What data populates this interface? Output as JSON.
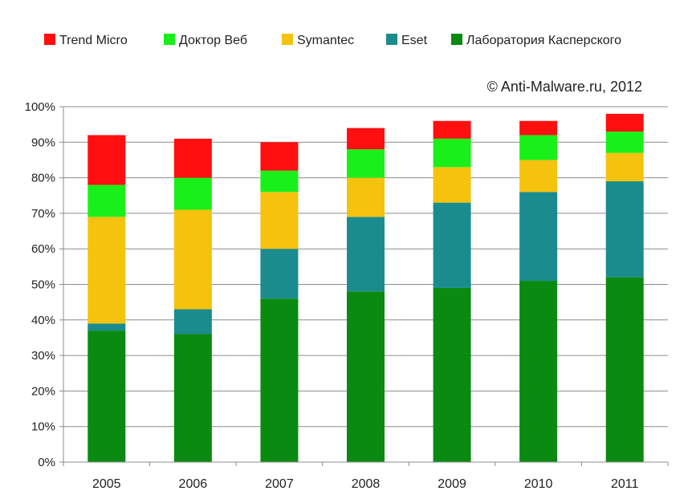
{
  "chart_data": {
    "type": "bar",
    "stacked": true,
    "categories": [
      "2005",
      "2006",
      "2007",
      "2008",
      "2009",
      "2010",
      "2011"
    ],
    "series": [
      {
        "name": "Лаборатория Касперского",
        "color": "#0a8a10",
        "values": [
          37,
          36,
          46,
          48,
          49,
          51,
          52
        ]
      },
      {
        "name": "Eset",
        "color": "#1a8c8e",
        "values": [
          2,
          7,
          14,
          21,
          24,
          25,
          27
        ]
      },
      {
        "name": "Symantec",
        "color": "#f5c20e",
        "values": [
          30,
          28,
          16,
          11,
          10,
          9,
          8
        ]
      },
      {
        "name": "Доктор Веб",
        "color": "#19f019",
        "values": [
          9,
          9,
          6,
          8,
          8,
          7,
          6
        ]
      },
      {
        "name": "Trend Micro",
        "color": "#ff0f0f",
        "values": [
          14,
          11,
          8,
          6,
          5,
          4,
          5
        ]
      }
    ],
    "legend_order": [
      "Trend Micro",
      "Доктор Веб",
      "Symantec",
      "Eset",
      "Лаборатория Касперского"
    ],
    "yticks": [
      "0%",
      "10%",
      "20%",
      "30%",
      "40%",
      "50%",
      "60%",
      "70%",
      "80%",
      "90%",
      "100%"
    ],
    "ylim": [
      0,
      100
    ],
    "grid": true,
    "legend_position": "top",
    "annotation": "© Anti-Malware.ru,  2012"
  }
}
